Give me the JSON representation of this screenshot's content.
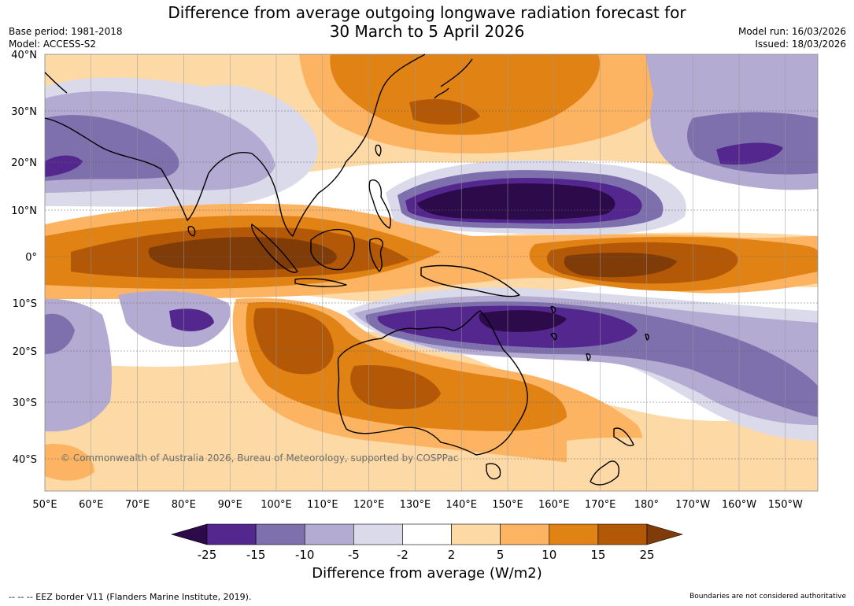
{
  "header": {
    "title_line1": "Difference from average outgoing longwave radiation forecast for",
    "title_line2": "30 March to 5 April 2026",
    "base_period": "Base period: 1981-2018",
    "model": "Model: ACCESS-S2",
    "model_run": "Model run: 16/03/2026",
    "issued": "Issued: 18/03/2026"
  },
  "map": {
    "lat_labels": [
      "40°N",
      "30°N",
      "20°N",
      "10°N",
      "0°",
      "10°S",
      "20°S",
      "30°S",
      "40°S"
    ],
    "lon_labels": [
      "50°E",
      "60°E",
      "70°E",
      "80°E",
      "90°E",
      "100°E",
      "110°E",
      "120°E",
      "130°E",
      "140°E",
      "150°E",
      "160°E",
      "170°E",
      "180°",
      "170°W",
      "160°W",
      "150°W"
    ],
    "copyright": "© Commonwealth of Australia 2026, Bureau of Meteorology, supported by COSPPac"
  },
  "colorbar": {
    "tick_labels": [
      "-25",
      "-15",
      "-10",
      "-5",
      "-2",
      "2",
      "5",
      "10",
      "15",
      "25"
    ],
    "colors": [
      "#2d0a4a",
      "#54278f",
      "#7e6fad",
      "#b3abd1",
      "#dadaeb",
      "#ffffff",
      "#fdd9a6",
      "#fdb462",
      "#e08214",
      "#b35806",
      "#7f3b08"
    ],
    "title": "Difference from average (W/m2)"
  },
  "footer": {
    "eez_note": "--  --  -- EEZ border V11 (Flanders Marine Institute, 2019).",
    "boundaries_note": "Boundaries are not considered authoritative"
  }
}
